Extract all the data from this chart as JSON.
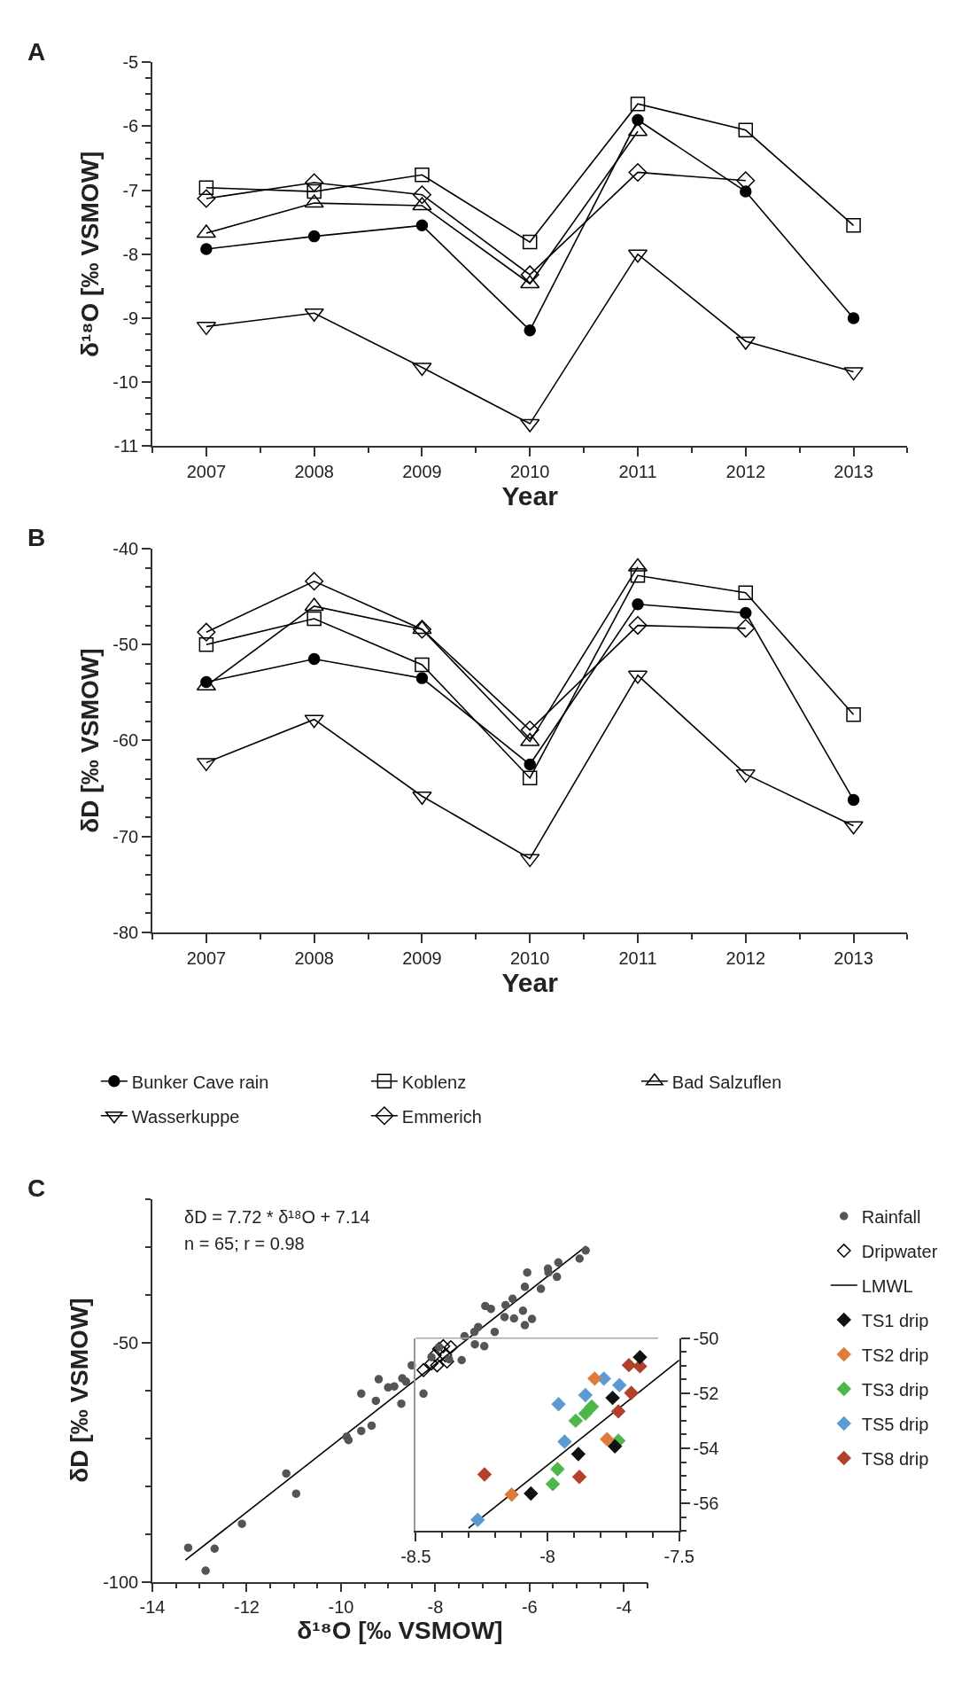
{
  "chart_data": [
    {
      "type": "line",
      "title": "A",
      "ylabel": "δ¹⁸O [‰ VSMOW]",
      "xlabel": "Year",
      "x": [
        2007,
        2008,
        2009,
        2010,
        2011,
        2012,
        2013
      ],
      "xlim": [
        2006.5,
        2013.5
      ],
      "xticks": [
        2007,
        2008,
        2009,
        2010,
        2011,
        2012,
        2013,
        {
          "value": 2006.5,
          "label": null
        },
        {
          "value": 2007.5,
          "label": null
        },
        {
          "value": 2008.5,
          "label": null
        },
        {
          "value": 2009.5,
          "label": null
        },
        {
          "value": 2010.5,
          "label": null
        },
        {
          "value": 2011.5,
          "label": null
        },
        {
          "value": 2012.5,
          "label": null
        },
        {
          "value": 2013.5,
          "label": null
        }
      ],
      "ylim": [
        -11,
        -5
      ],
      "yticks": [
        -11,
        -10,
        -9,
        -8,
        -7,
        -6,
        -5,
        {
          "value": -10.75,
          "label": null
        },
        {
          "value": -10.5,
          "label": null
        },
        {
          "value": -10.25,
          "label": null
        },
        {
          "value": -9.75,
          "label": null
        },
        {
          "value": -9.5,
          "label": null
        },
        {
          "value": -9.25,
          "label": null
        },
        {
          "value": -8.75,
          "label": null
        },
        {
          "value": -8.5,
          "label": null
        },
        {
          "value": -8.25,
          "label": null
        },
        {
          "value": -7.75,
          "label": null
        },
        {
          "value": -7.5,
          "label": null
        },
        {
          "value": -7.25,
          "label": null
        },
        {
          "value": -6.75,
          "label": null
        },
        {
          "value": -6.5,
          "label": null
        },
        {
          "value": -6.25,
          "label": null
        },
        {
          "value": -5.75,
          "label": null
        },
        {
          "value": -5.5,
          "label": null
        },
        {
          "value": -5.25,
          "label": null
        }
      ],
      "grid": false,
      "legend": "bottom",
      "line_style": "solid",
      "series": [
        {
          "name": "Bunker Cave rain",
          "color": "#000000",
          "marker": "circle",
          "values": [
            -7.92,
            -7.72,
            -7.55,
            -9.19,
            -5.9,
            -7.02,
            -9.0
          ]
        },
        {
          "name": "Koblenz",
          "color": "#000000",
          "marker": "square-open",
          "values": [
            -6.96,
            -7.02,
            -6.76,
            -7.81,
            -5.65,
            -6.06,
            -7.55
          ]
        },
        {
          "name": "Bad Salzuflen",
          "color": "#000000",
          "marker": "triangle-open",
          "values": [
            -7.67,
            -7.2,
            -7.24,
            -8.46,
            -6.08,
            null,
            null
          ]
        },
        {
          "name": "Wasserkuppe",
          "color": "#000000",
          "marker": "triangle-down-open",
          "values": [
            -9.13,
            -8.92,
            -9.77,
            -10.65,
            -8.0,
            -9.36,
            -9.84
          ]
        },
        {
          "name": "Emmerich",
          "color": "#000000",
          "marker": "diamond-open",
          "values": [
            -7.13,
            -6.88,
            -7.07,
            -8.32,
            -6.72,
            -6.85,
            null
          ]
        }
      ]
    },
    {
      "type": "line",
      "title": "B",
      "ylabel": "δD [‰ VSMOW]",
      "xlabel": "Year",
      "x": [
        2007,
        2008,
        2009,
        2010,
        2011,
        2012,
        2013
      ],
      "xlim": [
        2006.5,
        2013.5
      ],
      "xticks": [
        2007,
        2008,
        2009,
        2010,
        2011,
        2012,
        2013,
        {
          "value": 2006.5,
          "label": null
        },
        {
          "value": 2007.5,
          "label": null
        },
        {
          "value": 2008.5,
          "label": null
        },
        {
          "value": 2009.5,
          "label": null
        },
        {
          "value": 2010.5,
          "label": null
        },
        {
          "value": 2011.5,
          "label": null
        },
        {
          "value": 2012.5,
          "label": null
        },
        {
          "value": 2013.5,
          "label": null
        }
      ],
      "ylim": [
        -80,
        -40
      ],
      "yticks": [
        -80,
        -70,
        -60,
        -50,
        -40,
        {
          "value": -78,
          "label": null
        },
        {
          "value": -76,
          "label": null
        },
        {
          "value": -74,
          "label": null
        },
        {
          "value": -72,
          "label": null
        },
        {
          "value": -68,
          "label": null
        },
        {
          "value": -66,
          "label": null
        },
        {
          "value": -64,
          "label": null
        },
        {
          "value": -62,
          "label": null
        },
        {
          "value": -58,
          "label": null
        },
        {
          "value": -56,
          "label": null
        },
        {
          "value": -54,
          "label": null
        },
        {
          "value": -52,
          "label": null
        },
        {
          "value": -48,
          "label": null
        },
        {
          "value": -46,
          "label": null
        },
        {
          "value": -44,
          "label": null
        },
        {
          "value": -42,
          "label": null
        }
      ],
      "grid": false,
      "legend": "bottom",
      "line_style": "solid",
      "series": [
        {
          "name": "Bunker Cave rain",
          "color": "#000000",
          "marker": "circle",
          "values": [
            -53.9,
            -51.5,
            -53.5,
            -62.5,
            -45.8,
            -46.7,
            -66.2
          ]
        },
        {
          "name": "Koblenz",
          "color": "#000000",
          "marker": "square-open",
          "values": [
            -50.0,
            -47.3,
            -52.1,
            -63.9,
            -42.8,
            -44.6,
            -57.3
          ]
        },
        {
          "name": "Bad Salzuflen",
          "color": "#000000",
          "marker": "triangle-open",
          "values": [
            -54.3,
            -46.0,
            -48.4,
            -60.1,
            -41.9,
            null,
            null
          ]
        },
        {
          "name": "Wasserkuppe",
          "color": "#000000",
          "marker": "triangle-down-open",
          "values": [
            -62.3,
            -57.8,
            -65.8,
            -72.3,
            -53.2,
            -63.5,
            -68.9
          ]
        },
        {
          "name": "Emmerich",
          "color": "#000000",
          "marker": "diamond-open",
          "values": [
            -48.7,
            -43.4,
            -48.4,
            -58.9,
            -48.0,
            -48.3,
            null
          ]
        }
      ]
    },
    {
      "type": "scatter",
      "title": "C",
      "xlabel": "δ¹⁸O [‰ VSMOW]",
      "ylabel": "δD [‰ VSMOW]",
      "annotations": [
        "δD = 7.72 * δ¹⁸O + 7.14",
        "n = 65; r = 0.98"
      ],
      "xlim": [
        -14,
        -3.5
      ],
      "xticks": [
        -14,
        -12,
        -10,
        -8,
        -6,
        -4,
        {
          "value": -13.5,
          "label": null
        },
        {
          "value": -13,
          "label": null
        },
        {
          "value": -12.5,
          "label": null
        },
        {
          "value": -11.5,
          "label": null
        },
        {
          "value": -11,
          "label": null
        },
        {
          "value": -10.5,
          "label": null
        },
        {
          "value": -9.5,
          "label": null
        },
        {
          "value": -9,
          "label": null
        },
        {
          "value": -8.5,
          "label": null
        },
        {
          "value": -7.5,
          "label": null
        },
        {
          "value": -7,
          "label": null
        },
        {
          "value": -6.5,
          "label": null
        },
        {
          "value": -5.5,
          "label": null
        },
        {
          "value": -5,
          "label": null
        },
        {
          "value": -4.5,
          "label": null
        },
        {
          "value": -3.5,
          "label": null
        }
      ],
      "ylim": [
        -100,
        -20
      ],
      "yticks": [
        -100,
        -50,
        {
          "value": -90,
          "label": null
        },
        {
          "value": -80,
          "label": null
        },
        {
          "value": -70,
          "label": null
        },
        {
          "value": -60,
          "label": null
        },
        {
          "value": -40,
          "label": null
        },
        {
          "value": -30,
          "label": null
        },
        {
          "value": -20,
          "label": null
        }
      ],
      "grid": false,
      "legend": "right",
      "series": [
        {
          "name": "Rainfall",
          "type": "scatter",
          "color": "#555555",
          "marker": "circle",
          "x": [
            -13.24,
            -12.87,
            -12.68,
            -12.1,
            -11.16,
            -10.95,
            -9.88,
            -9.84,
            -9.57,
            -9.35,
            -9.57,
            -9.26,
            -9.2,
            -9.0,
            -8.87,
            -8.7,
            -8.72,
            -8.62,
            -8.5,
            -8.25,
            -8.08,
            -7.92,
            -7.71,
            -7.44,
            -7.38,
            -7.17,
            -7.09,
            -7.16,
            -6.96,
            -6.74,
            -6.94,
            -6.82,
            -6.51,
            -6.36,
            -6.53,
            -6.33,
            -6.14,
            -6.1,
            -5.95,
            -6.05,
            -6.1,
            -5.76,
            -5.61,
            -5.6,
            -5.42,
            -5.39,
            -4.94,
            -4.81
          ],
          "values": [
            -92.9,
            -97.7,
            -93.1,
            -87.9,
            -77.4,
            -81.6,
            -69.7,
            -70.4,
            -68.5,
            -67.4,
            -60.7,
            -62.2,
            -57.7,
            -59.4,
            -59.2,
            -57.5,
            -62.8,
            -58.2,
            -54.8,
            -60.7,
            -53.1,
            -51.0,
            -53.5,
            -53.7,
            -48.7,
            -47.8,
            -46.8,
            -50.4,
            -50.8,
            -47.8,
            -42.4,
            -43.0,
            -42.2,
            -40.9,
            -44.7,
            -45.0,
            -43.4,
            -46.4,
            -45.1,
            -35.4,
            -38.4,
            -38.8,
            -34.6,
            -35.4,
            -36.3,
            -33.3,
            -32.5,
            -30.8
          ]
        },
        {
          "name": "Dripwater",
          "type": "scatter",
          "color": "#000000",
          "marker": "diamond-open",
          "x": [
            -8.25,
            -8.08,
            -8.01,
            -7.92,
            -7.83,
            -7.79,
            -7.67,
            -7.75,
            -7.96
          ],
          "values": [
            -55.8,
            -54.4,
            -52.7,
            -51.4,
            -50.8,
            -52.7,
            -51.0,
            -54.0,
            -54.8
          ]
        },
        {
          "name": "LMWL",
          "type": "line",
          "color": "#000000",
          "marker": "none",
          "x": [
            -13.3,
            -4.8
          ],
          "values": [
            -95.5,
            -29.9
          ]
        }
      ]
    },
    {
      "type": "scatter",
      "xlim": [
        -8.5,
        -7.5
      ],
      "xticks": [
        -8.5,
        -8,
        -7.5,
        {
          "value": -8.4,
          "label": null
        },
        {
          "value": -8.3,
          "label": null
        },
        {
          "value": -8.2,
          "label": null
        },
        {
          "value": -8.1,
          "label": null
        },
        {
          "value": -7.9,
          "label": null
        },
        {
          "value": -7.8,
          "label": null
        },
        {
          "value": -7.7,
          "label": null
        },
        {
          "value": -7.6,
          "label": null
        }
      ],
      "y2lim": [
        -57,
        -50
      ],
      "y2ticks": [
        -56,
        -54,
        -52,
        -50,
        {
          "value": -57,
          "label": null
        },
        {
          "value": -56.5,
          "label": null
        },
        {
          "value": -55.5,
          "label": null
        },
        {
          "value": -55,
          "label": null
        },
        {
          "value": -54.5,
          "label": null
        },
        {
          "value": -53.5,
          "label": null
        },
        {
          "value": -53,
          "label": null
        },
        {
          "value": -52.5,
          "label": null
        },
        {
          "value": -51.5,
          "label": null
        },
        {
          "value": -51,
          "label": null
        },
        {
          "value": -50.5,
          "label": null
        }
      ],
      "grid": false,
      "legend": "right",
      "series": [
        {
          "name": "TS1 drip",
          "axis": "y2",
          "color": "#111111",
          "marker": "diamond",
          "x": [
            -7.649,
            -7.753,
            -7.744,
            -7.883,
            -8.063
          ],
          "values": [
            -50.69,
            -52.17,
            -53.93,
            -54.21,
            -55.64
          ]
        },
        {
          "name": "TS2 drip",
          "axis": "y2",
          "color": "#e07b39",
          "marker": "diamond",
          "x": [
            -7.821,
            -7.774,
            -8.136
          ],
          "values": [
            -51.47,
            -53.67,
            -55.68
          ]
        },
        {
          "name": "TS3 drip",
          "axis": "y2",
          "color": "#4cb848",
          "marker": "diamond",
          "x": [
            -7.893,
            -7.856,
            -7.832,
            -7.731,
            -7.962,
            -7.98
          ],
          "values": [
            -53.0,
            -52.74,
            -52.49,
            -53.73,
            -54.76,
            -55.3
          ]
        },
        {
          "name": "TS5 drip",
          "axis": "y2",
          "color": "#5b9bd5",
          "marker": "diamond",
          "x": [
            -7.786,
            -7.856,
            -7.958,
            -7.935,
            -7.727,
            -8.265
          ],
          "values": [
            -51.47,
            -52.07,
            -52.4,
            -53.76,
            -51.71,
            -56.6
          ]
        },
        {
          "name": "TS8 drip",
          "axis": "y2",
          "color": "#b5402a",
          "marker": "diamond",
          "x": [
            -7.691,
            -7.649,
            -7.682,
            -7.731,
            -7.879,
            -8.239
          ],
          "values": [
            -50.98,
            -51.02,
            -51.99,
            -52.66,
            -55.04,
            -54.95
          ]
        },
        {
          "type": "line",
          "axis": "y2",
          "color": "#000000",
          "marker": "none",
          "x": [
            -8.3,
            -7.5
          ],
          "values": [
            -56.9,
            -50.8
          ]
        }
      ]
    }
  ]
}
